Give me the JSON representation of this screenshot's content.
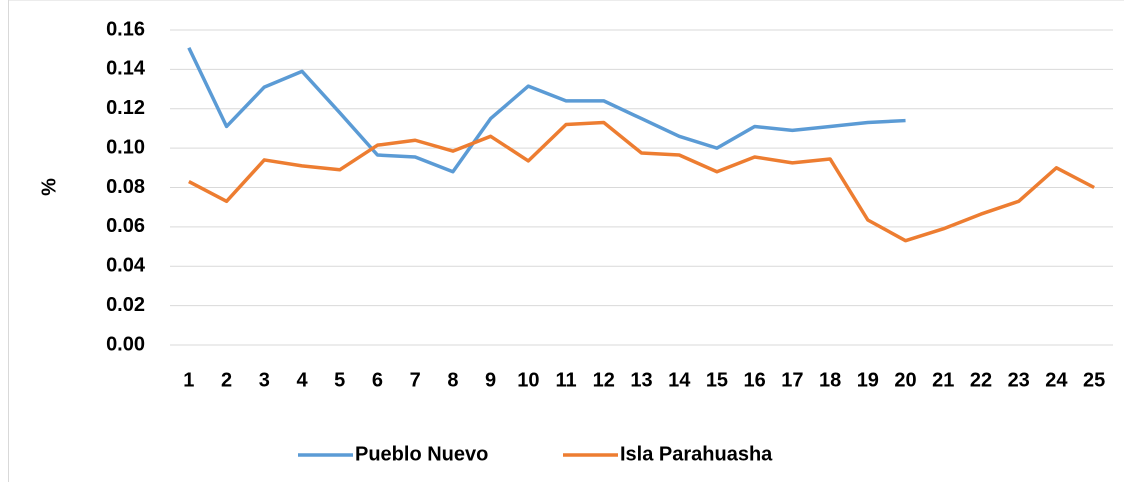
{
  "chart_data": {
    "type": "line",
    "y_label": "%",
    "categories": [
      "1",
      "2",
      "3",
      "4",
      "5",
      "6",
      "7",
      "8",
      "9",
      "10",
      "11",
      "12",
      "13",
      "14",
      "15",
      "16",
      "17",
      "18",
      "19",
      "20",
      "21",
      "22",
      "23",
      "24",
      "25"
    ],
    "series": [
      {
        "name": "Pueblo Nuevo",
        "color": "#5b9bd5",
        "values": [
          0.151,
          0.111,
          0.131,
          0.139,
          0.118,
          0.0965,
          0.0955,
          0.088,
          0.115,
          0.1315,
          0.124,
          0.124,
          0.115,
          0.106,
          0.1,
          0.111,
          0.109,
          0.111,
          0.113,
          0.114,
          null,
          null,
          null,
          null,
          null
        ]
      },
      {
        "name": "Isla Parahuasha",
        "color": "#ed7d31",
        "values": [
          0.083,
          0.073,
          0.094,
          0.091,
          0.089,
          0.1015,
          0.104,
          0.0985,
          0.106,
          0.0935,
          0.112,
          0.113,
          0.0975,
          0.0965,
          0.088,
          0.0955,
          0.0925,
          0.0945,
          0.0635,
          0.053,
          0.059,
          0.0665,
          0.073,
          0.09,
          0.08
        ]
      }
    ],
    "ylim": [
      0,
      0.16
    ],
    "yticks": [
      {
        "value": 0,
        "label": "0.00"
      },
      {
        "value": 0.02,
        "label": "0.02"
      },
      {
        "value": 0.04,
        "label": "0.04"
      },
      {
        "value": 0.06,
        "label": "0.06"
      },
      {
        "value": 0.08,
        "label": "0.08"
      },
      {
        "value": 0.1,
        "label": "0.10"
      },
      {
        "value": 0.12,
        "label": "0.12"
      },
      {
        "value": 0.14,
        "label": "0.14"
      },
      {
        "value": 0.16,
        "label": "0.16"
      }
    ],
    "grid": true,
    "legend": "bottom"
  }
}
